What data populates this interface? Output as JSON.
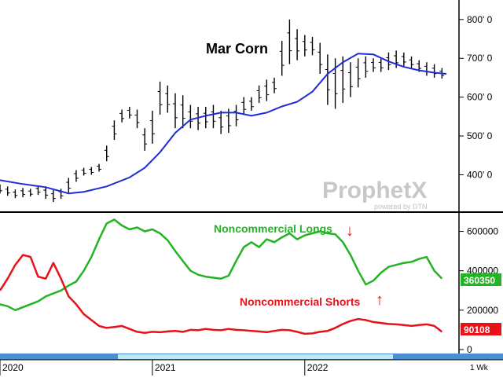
{
  "chart_data": [
    {
      "type": "bar",
      "subtype": "ohlc-weekly",
      "title": "Mar Corn",
      "price_axis": {
        "ylim": [
          320,
          830
        ],
        "ticks": [
          400,
          500,
          600,
          700,
          800
        ],
        "tick_labels": [
          "400' 0",
          "500' 0",
          "600' 0",
          "700' 0",
          "800' 0"
        ]
      },
      "x_range": [
        2020.0,
        2022.95
      ],
      "moving_average": {
        "color": "#1f2dd6",
        "x": [
          2020.0,
          2020.15,
          2020.3,
          2020.45,
          2020.55,
          2020.7,
          2020.85,
          2020.95,
          2021.05,
          2021.15,
          2021.25,
          2021.35,
          2021.45,
          2021.55,
          2021.65,
          2021.75,
          2021.85,
          2021.95,
          2022.05,
          2022.15,
          2022.25,
          2022.35,
          2022.45,
          2022.55,
          2022.65,
          2022.75,
          2022.85,
          2022.93
        ],
        "values": [
          386,
          376,
          368,
          352,
          356,
          370,
          393,
          418,
          458,
          508,
          542,
          552,
          560,
          560,
          552,
          560,
          576,
          588,
          614,
          660,
          690,
          712,
          710,
          692,
          678,
          669,
          663,
          660
        ]
      },
      "price_bars": {
        "color": "#000000",
        "x": [
          2020.0,
          2020.05,
          2020.1,
          2020.15,
          2020.2,
          2020.25,
          2020.3,
          2020.35,
          2020.4,
          2020.45,
          2020.5,
          2020.55,
          2020.6,
          2020.65,
          2020.7,
          2020.75,
          2020.8,
          2020.85,
          2020.9,
          2020.95,
          2021.0,
          2021.05,
          2021.1,
          2021.15,
          2021.2,
          2021.25,
          2021.3,
          2021.35,
          2021.4,
          2021.45,
          2021.5,
          2021.55,
          2021.6,
          2021.65,
          2021.7,
          2021.75,
          2021.8,
          2021.85,
          2021.9,
          2021.95,
          2022.0,
          2022.05,
          2022.1,
          2022.15,
          2022.2,
          2022.25,
          2022.3,
          2022.35,
          2022.4,
          2022.45,
          2022.5,
          2022.55,
          2022.6,
          2022.65,
          2022.7,
          2022.75,
          2022.8,
          2022.85,
          2022.9
        ],
        "high": [
          375,
          370,
          362,
          366,
          364,
          372,
          370,
          360,
          364,
          392,
          412,
          418,
          420,
          428,
          475,
          540,
          568,
          575,
          568,
          520,
          565,
          640,
          630,
          610,
          605,
          580,
          575,
          575,
          580,
          565,
          570,
          580,
          600,
          600,
          630,
          645,
          650,
          745,
          800,
          775,
          760,
          755,
          740,
          710,
          700,
          705,
          690,
          700,
          705,
          700,
          700,
          715,
          720,
          715,
          705,
          695,
          690,
          685,
          675
        ],
        "low": [
          352,
          346,
          340,
          342,
          344,
          348,
          338,
          330,
          338,
          354,
          382,
          398,
          400,
          408,
          435,
          490,
          535,
          545,
          520,
          462,
          480,
          555,
          560,
          520,
          520,
          520,
          515,
          520,
          520,
          505,
          508,
          525,
          555,
          565,
          585,
          590,
          610,
          655,
          685,
          695,
          705,
          708,
          660,
          580,
          570,
          585,
          600,
          625,
          650,
          665,
          665,
          670,
          675,
          680,
          675,
          665,
          655,
          650,
          648
        ]
      }
    },
    {
      "type": "line",
      "series": [
        {
          "name": "Noncommercial Longs",
          "color": "#22b422",
          "x": [
            2020.0,
            2020.05,
            2020.1,
            2020.15,
            2020.2,
            2020.25,
            2020.3,
            2020.35,
            2020.4,
            2020.45,
            2020.5,
            2020.55,
            2020.6,
            2020.65,
            2020.7,
            2020.75,
            2020.8,
            2020.85,
            2020.9,
            2020.95,
            2021.0,
            2021.05,
            2021.1,
            2021.15,
            2021.2,
            2021.25,
            2021.3,
            2021.35,
            2021.4,
            2021.45,
            2021.5,
            2021.55,
            2021.6,
            2021.65,
            2021.7,
            2021.75,
            2021.8,
            2021.85,
            2021.9,
            2021.95,
            2022.0,
            2022.05,
            2022.1,
            2022.15,
            2022.2,
            2022.25,
            2022.3,
            2022.35,
            2022.4,
            2022.45,
            2022.5,
            2022.55,
            2022.6,
            2022.65,
            2022.7,
            2022.75,
            2022.8,
            2022.85,
            2022.9
          ],
          "values": [
            230000,
            220000,
            200000,
            215000,
            230000,
            245000,
            270000,
            285000,
            300000,
            325000,
            345000,
            400000,
            470000,
            560000,
            640000,
            660000,
            630000,
            610000,
            620000,
            600000,
            610000,
            590000,
            555000,
            500000,
            450000,
            400000,
            380000,
            370000,
            365000,
            360000,
            375000,
            450000,
            520000,
            545000,
            520000,
            560000,
            545000,
            570000,
            590000,
            560000,
            580000,
            590000,
            600000,
            590000,
            585000,
            545000,
            480000,
            400000,
            330000,
            350000,
            390000,
            420000,
            430000,
            440000,
            445000,
            460000,
            470000,
            400000,
            360350
          ]
        },
        {
          "name": "Noncommercial Shorts",
          "color": "#e8111a",
          "x": [
            2020.0,
            2020.05,
            2020.1,
            2020.15,
            2020.2,
            2020.25,
            2020.3,
            2020.35,
            2020.4,
            2020.45,
            2020.5,
            2020.55,
            2020.6,
            2020.65,
            2020.7,
            2020.75,
            2020.8,
            2020.85,
            2020.9,
            2020.95,
            2021.0,
            2021.05,
            2021.1,
            2021.15,
            2021.2,
            2021.25,
            2021.3,
            2021.35,
            2021.4,
            2021.45,
            2021.5,
            2021.55,
            2021.6,
            2021.65,
            2021.7,
            2021.75,
            2021.8,
            2021.85,
            2021.9,
            2021.95,
            2022.0,
            2022.05,
            2022.1,
            2022.15,
            2022.2,
            2022.25,
            2022.3,
            2022.35,
            2022.4,
            2022.45,
            2022.5,
            2022.55,
            2022.6,
            2022.65,
            2022.7,
            2022.75,
            2022.8,
            2022.85,
            2022.9
          ],
          "values": [
            300000,
            360000,
            430000,
            480000,
            470000,
            370000,
            360000,
            440000,
            360000,
            270000,
            230000,
            180000,
            150000,
            120000,
            110000,
            115000,
            120000,
            105000,
            90000,
            85000,
            90000,
            88000,
            92000,
            95000,
            90000,
            100000,
            98000,
            105000,
            100000,
            98000,
            105000,
            100000,
            98000,
            95000,
            92000,
            88000,
            95000,
            100000,
            98000,
            90000,
            80000,
            82000,
            90000,
            95000,
            110000,
            130000,
            145000,
            155000,
            150000,
            140000,
            135000,
            130000,
            128000,
            125000,
            120000,
            125000,
            128000,
            120000,
            90108
          ]
        }
      ],
      "ylim": [
        0,
        650000
      ],
      "ticks": [
        0,
        200000,
        400000,
        600000
      ],
      "tick_labels": [
        "0",
        "200000",
        "400000",
        "600000"
      ],
      "last_values": [
        "360350",
        "90108"
      ],
      "annotations": [
        {
          "text": "↓",
          "x": 2021.9,
          "color": "#e8111a"
        },
        {
          "text": "↑",
          "x": 2021.99,
          "color": "#e8111a"
        }
      ]
    }
  ],
  "x_axis": {
    "labels": [
      "2020",
      "2021",
      "2022"
    ],
    "label_x": [
      2020.0,
      2021.0,
      2022.0
    ],
    "period": "1 Wk"
  },
  "watermark": {
    "brand": "ProphetX",
    "tagline": "powered by DTN"
  }
}
